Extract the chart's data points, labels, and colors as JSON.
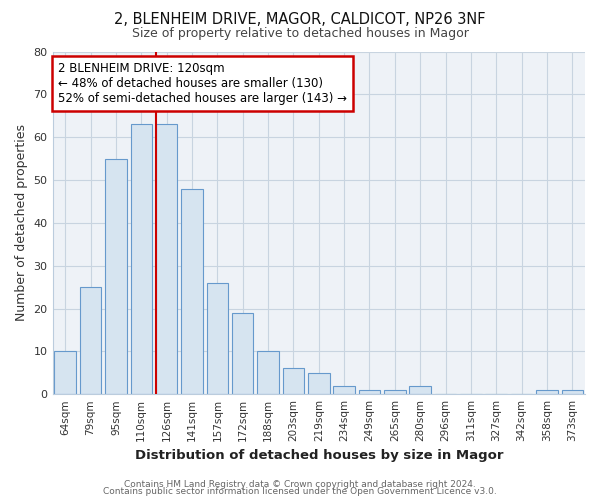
{
  "title": "2, BLENHEIM DRIVE, MAGOR, CALDICOT, NP26 3NF",
  "subtitle": "Size of property relative to detached houses in Magor",
  "xlabel": "Distribution of detached houses by size in Magor",
  "ylabel": "Number of detached properties",
  "bar_labels": [
    "64sqm",
    "79sqm",
    "95sqm",
    "110sqm",
    "126sqm",
    "141sqm",
    "157sqm",
    "172sqm",
    "188sqm",
    "203sqm",
    "219sqm",
    "234sqm",
    "249sqm",
    "265sqm",
    "280sqm",
    "296sqm",
    "311sqm",
    "327sqm",
    "342sqm",
    "358sqm",
    "373sqm"
  ],
  "bar_values": [
    10,
    25,
    55,
    63,
    63,
    48,
    26,
    19,
    10,
    6,
    5,
    2,
    1,
    1,
    2,
    0,
    0,
    0,
    0,
    1,
    1
  ],
  "bar_color": "#d6e4f0",
  "bar_edge_color": "#6699cc",
  "highlight_line_color": "#cc0000",
  "highlight_line_index": 3.57,
  "annotation_title": "2 BLENHEIM DRIVE: 120sqm",
  "annotation_line1": "← 48% of detached houses are smaller (130)",
  "annotation_line2": "52% of semi-detached houses are larger (143) →",
  "annotation_box_color": "#ffffff",
  "annotation_box_edge": "#cc0000",
  "ylim": [
    0,
    80
  ],
  "yticks": [
    0,
    10,
    20,
    30,
    40,
    50,
    60,
    70,
    80
  ],
  "grid_color": "#c8d4e0",
  "bg_color": "#ffffff",
  "plot_bg_color": "#eef2f7",
  "footer1": "Contains HM Land Registry data © Crown copyright and database right 2024.",
  "footer2": "Contains public sector information licensed under the Open Government Licence v3.0."
}
